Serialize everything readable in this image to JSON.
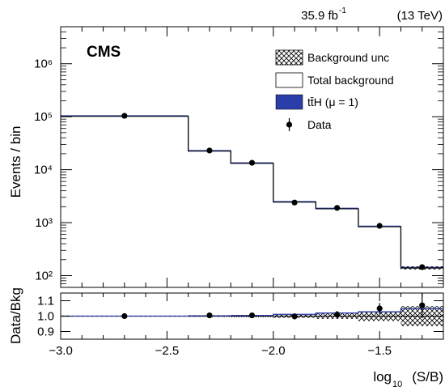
{
  "header": {
    "lumi": "35.9 fb",
    "lumi_exp": "-1",
    "energy": "(13 TeV)",
    "experiment": "CMS"
  },
  "chart_data": [
    {
      "type": "histogram",
      "xlabel": "log",
      "xlabel_sub": "10",
      "xlabel_tail": "(S/B)",
      "ylabel": "Events / bin",
      "yscale": "log",
      "ylim": [
        60,
        5000000
      ],
      "xlim": [
        -3.0,
        -1.2
      ],
      "bin_edges": [
        -3.0,
        -2.4,
        -2.2,
        -2.0,
        -1.8,
        -1.6,
        -1.4,
        -1.2
      ],
      "total_background": [
        102000,
        22500,
        13200,
        2450,
        1830,
        840,
        140
      ],
      "ttH_mu1": [
        0,
        0,
        0,
        0,
        0,
        0,
        0
      ],
      "data": {
        "x": [
          -2.7,
          -2.3,
          -2.1,
          -1.9,
          -1.7,
          -1.5,
          -1.3
        ],
        "y": [
          104000,
          23000,
          13500,
          2400,
          1900,
          870,
          145
        ]
      },
      "y_ticks": [
        "10²",
        "10³",
        "10⁴",
        "10⁵",
        "10⁶"
      ],
      "legend": {
        "placement": "top-right",
        "entries": [
          {
            "label": "Background unc",
            "style": "hatch"
          },
          {
            "label": "Total background",
            "style": "line-box"
          },
          {
            "label": "tt̄H (μ = 1)",
            "style": "fill",
            "color": "#2b3da8"
          },
          {
            "label": "Data",
            "style": "marker"
          }
        ]
      }
    },
    {
      "type": "ratio",
      "ylabel": "Data/Bkg",
      "ylim": [
        0.85,
        1.15
      ],
      "y_ticks": [
        "0.9",
        "1.0",
        "1.1"
      ],
      "x_ticks": [
        "−3.0",
        "−2.5",
        "−2.0",
        "−1.5"
      ],
      "bin_edges": [
        -3.0,
        -2.4,
        -2.2,
        -2.0,
        -1.8,
        -1.6,
        -1.4,
        -1.2
      ],
      "signal_plus_bkg_ratio": [
        1.0,
        1.002,
        1.004,
        1.012,
        1.02,
        1.028,
        1.048
      ],
      "bkg_unc": [
        0.004,
        0.006,
        0.008,
        0.012,
        0.018,
        0.032,
        0.065
      ],
      "data": {
        "x": [
          -2.7,
          -2.3,
          -2.1,
          -1.9,
          -1.7,
          -1.5,
          -1.3
        ],
        "y": [
          1.0,
          1.005,
          1.005,
          0.998,
          1.01,
          1.05,
          1.07
        ],
        "err": [
          0.003,
          0.007,
          0.009,
          0.02,
          0.024,
          0.036,
          0.083
        ]
      }
    }
  ],
  "colors": {
    "signal": "#2b3da8",
    "line": "#000000"
  }
}
